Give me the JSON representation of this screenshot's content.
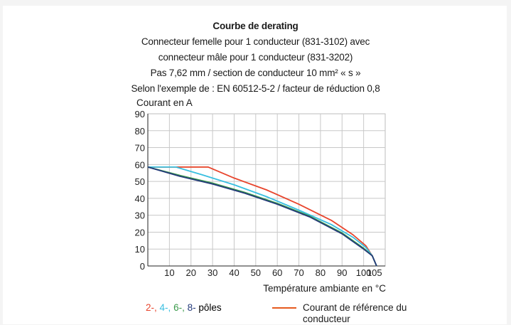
{
  "title_lines": [
    "Courbe de derating",
    "Connecteur femelle pour 1 conducteur (831-3102) avec",
    "connecteur mâle pour 1 conducteur (831-3202)",
    "Pas 7,62 mm / section de conducteur 10 mm² « s »",
    "Selon l'exemple de : EN 60512-5-2 / facteur de réduction 0,8"
  ],
  "chart_data": {
    "type": "line",
    "title": "Courbe de derating",
    "ylabel": "Courant en A",
    "xlabel": "Température ambiante en °C",
    "xlim": [
      0,
      110
    ],
    "ylim": [
      0,
      90
    ],
    "x_ticks": [
      10,
      20,
      30,
      40,
      50,
      60,
      70,
      80,
      90,
      100,
      105
    ],
    "y_ticks": [
      0,
      10,
      20,
      30,
      40,
      50,
      60,
      70,
      80,
      90
    ],
    "grid": true,
    "series": [
      {
        "name": "Courant de référence du conducteur",
        "color": "#f3c27a",
        "points": [
          [
            0,
            58.5
          ],
          [
            28,
            58.5
          ]
        ]
      },
      {
        "name": "2-",
        "color": "#e8442c",
        "points": [
          [
            0,
            58.5
          ],
          [
            28,
            58.5
          ],
          [
            40,
            52
          ],
          [
            55,
            45
          ],
          [
            70,
            36.5
          ],
          [
            85,
            27
          ],
          [
            95,
            18.5
          ],
          [
            101,
            12
          ],
          [
            104,
            6
          ],
          [
            106,
            0
          ]
        ]
      },
      {
        "name": "4-",
        "color": "#38bfe0",
        "points": [
          [
            0,
            58.5
          ],
          [
            13,
            58.5
          ],
          [
            25,
            54
          ],
          [
            40,
            48
          ],
          [
            55,
            41
          ],
          [
            70,
            33
          ],
          [
            85,
            24.5
          ],
          [
            95,
            17
          ],
          [
            101,
            11
          ],
          [
            104,
            6
          ],
          [
            106,
            0
          ]
        ]
      },
      {
        "name": "6-",
        "color": "#3a9a4a",
        "points": [
          [
            0,
            58.5
          ],
          [
            15,
            53.5
          ],
          [
            30,
            49
          ],
          [
            45,
            43.5
          ],
          [
            60,
            37
          ],
          [
            75,
            29.5
          ],
          [
            90,
            19.5
          ],
          [
            100,
            10.5
          ],
          [
            104,
            6
          ],
          [
            106,
            0
          ]
        ]
      },
      {
        "name": "8-",
        "color": "#243a7a",
        "points": [
          [
            0,
            58.5
          ],
          [
            15,
            53
          ],
          [
            30,
            48.5
          ],
          [
            45,
            43
          ],
          [
            60,
            36.5
          ],
          [
            75,
            29
          ],
          [
            90,
            19
          ],
          [
            100,
            10
          ],
          [
            104,
            6
          ],
          [
            106,
            0
          ]
        ]
      }
    ],
    "legend": [
      {
        "text": "2-,",
        "color": "#e8442c"
      },
      {
        "text": "4-,",
        "color": "#38bfe0"
      },
      {
        "text": "6-,",
        "color": "#3a9a4a"
      },
      {
        "text": "8-",
        "color": "#243a7a"
      },
      {
        "text": "pôles",
        "color": "#1a1a1a"
      }
    ],
    "legend_ref": {
      "text": "Courant de référence du conducteur",
      "color": "#e65a1e"
    }
  }
}
